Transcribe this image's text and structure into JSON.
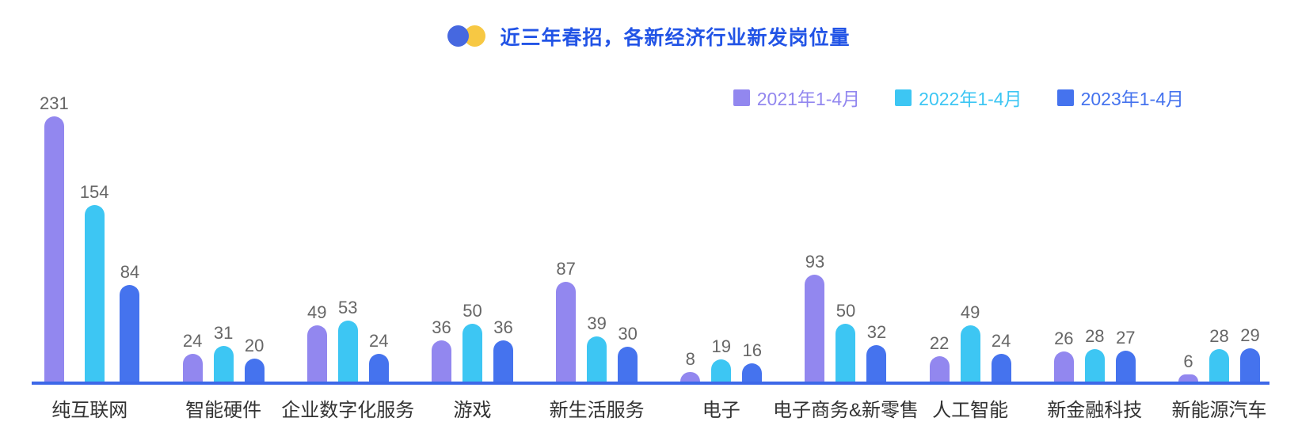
{
  "header": {
    "title": "近三年春招，各新经济行业新发岗位量"
  },
  "legend": [
    {
      "label": "2021年1-4月",
      "color": "#9287EF"
    },
    {
      "label": "2022年1-4月",
      "color": "#3DC6F3"
    },
    {
      "label": "2023年1-4月",
      "color": "#4573EE"
    }
  ],
  "chart_data": {
    "type": "bar",
    "title": "近三年春招，各新经济行业新发岗位量",
    "categories": [
      "纯互联网",
      "智能硬件",
      "企业数字化服务",
      "游戏",
      "新生活服务",
      "电子",
      "电子商务&新零售",
      "人工智能",
      "新金融科技",
      "新能源汽车"
    ],
    "series": [
      {
        "name": "2021年1-4月",
        "color": "#9287EF",
        "values": [
          231,
          24,
          49,
          36,
          87,
          8,
          93,
          22,
          26,
          6
        ]
      },
      {
        "name": "2022年1-4月",
        "color": "#3DC6F3",
        "values": [
          154,
          31,
          53,
          50,
          39,
          19,
          50,
          49,
          28,
          28
        ]
      },
      {
        "name": "2023年1-4月",
        "color": "#4573EE",
        "values": [
          84,
          20,
          24,
          36,
          30,
          16,
          32,
          24,
          27,
          29
        ]
      }
    ],
    "xlabel": "",
    "ylabel": "",
    "ylim": [
      0,
      240
    ],
    "grid": false,
    "legend_position": "top-right",
    "value_labels": true
  },
  "colors": {
    "title": "#2254E6",
    "axis_line": "#3D68E8",
    "value_label": "#666666",
    "category_label": "#333333",
    "logo_blue": "#4668E0",
    "logo_yellow": "#F7C843",
    "background": "#FFFFFF"
  }
}
